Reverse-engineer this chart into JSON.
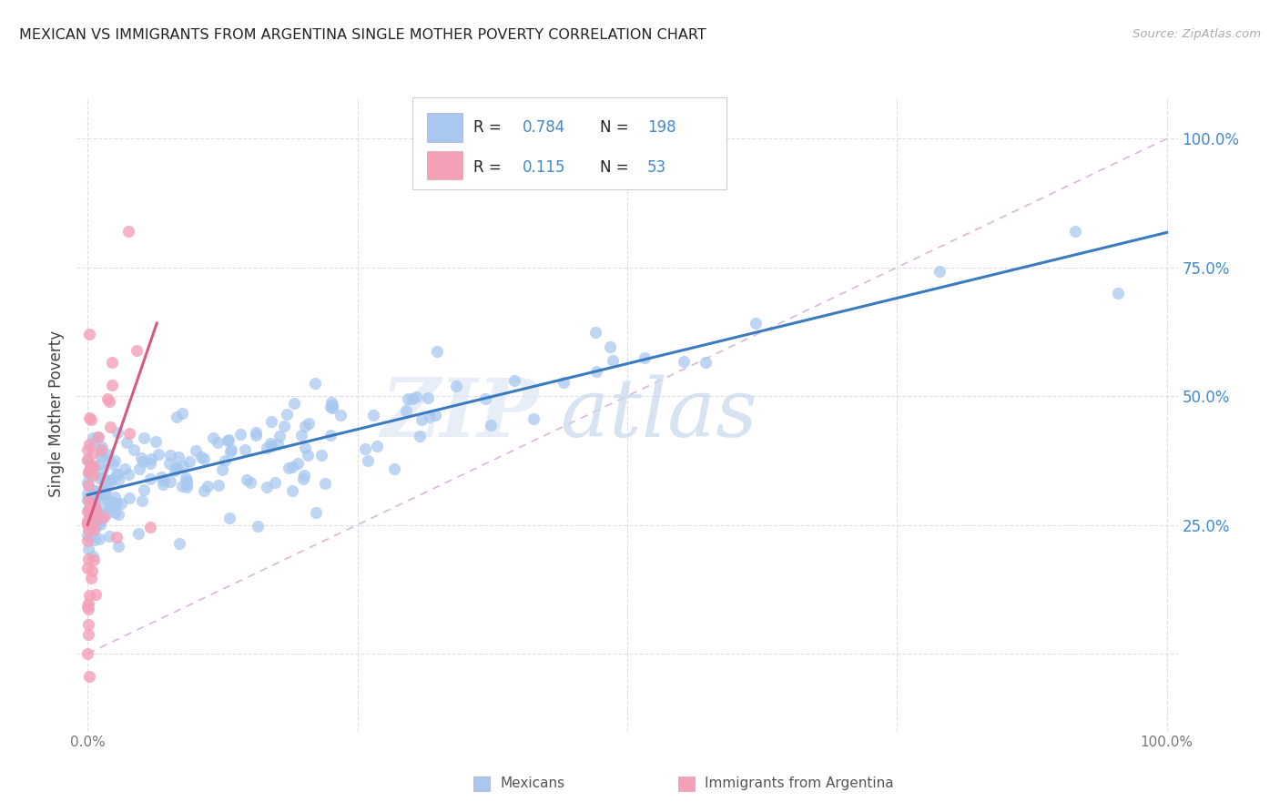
{
  "title": "MEXICAN VS IMMIGRANTS FROM ARGENTINA SINGLE MOTHER POVERTY CORRELATION CHART",
  "source": "Source: ZipAtlas.com",
  "ylabel": "Single Mother Poverty",
  "watermark_zip": "ZIP",
  "watermark_atlas": "atlas",
  "R_mexican": 0.784,
  "N_mexican": 198,
  "R_argentina": 0.115,
  "N_argentina": 53,
  "mexican_color": "#a8c8f0",
  "argentina_color": "#f4a0b8",
  "mexican_line_color": "#3a7abf",
  "argentina_line_color": "#d45a80",
  "diagonal_color": "#d8b8d8",
  "grid_color": "#e0dde8",
  "title_color": "#222222",
  "source_color": "#aaaaaa",
  "right_label_color": "#4488cc",
  "legend_R_N_color": "#4488cc",
  "background_color": "#ffffff",
  "legend_entries": [
    {
      "label": "Mexicans"
    },
    {
      "label": "Immigrants from Argentina"
    }
  ],
  "xlim": [
    -0.01,
    1.01
  ],
  "ylim": [
    -0.15,
    1.08
  ],
  "yticks": [
    0.0,
    0.25,
    0.5,
    0.75,
    1.0
  ],
  "xticks": [
    0.0,
    0.25,
    0.5,
    0.75,
    1.0
  ]
}
